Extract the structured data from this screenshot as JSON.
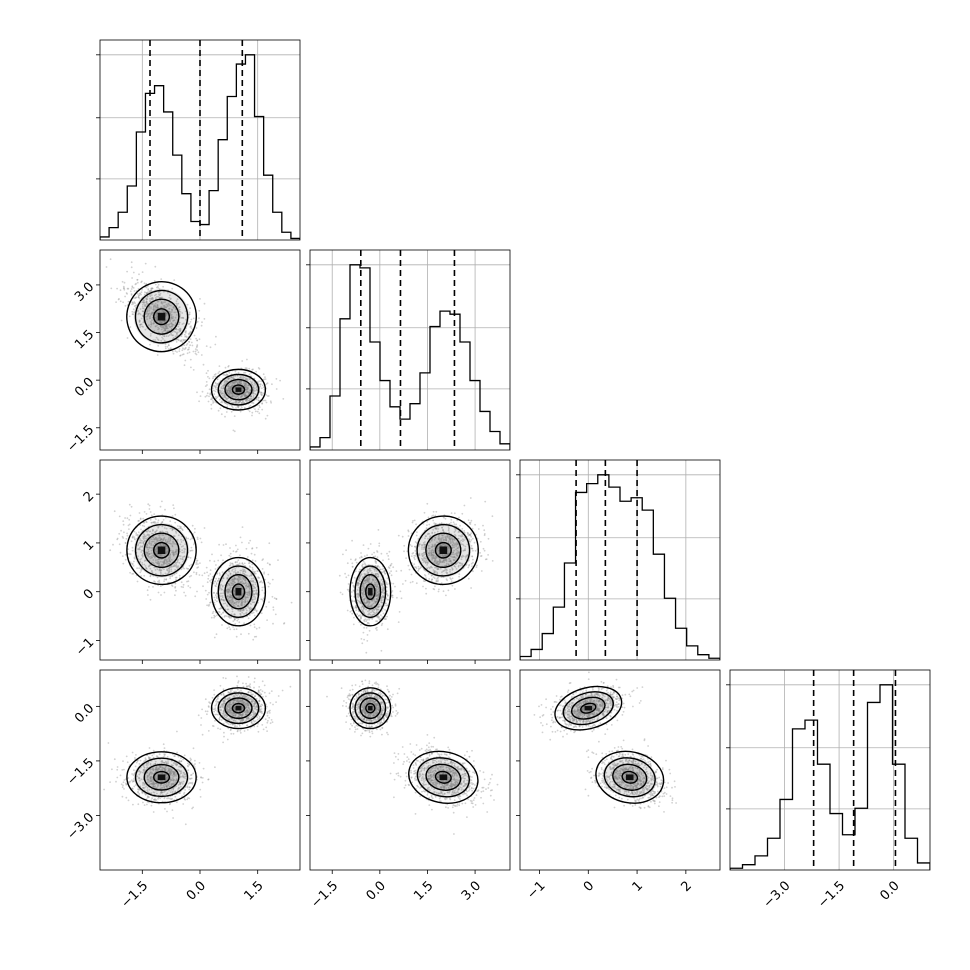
{
  "chart_data": {
    "type": "corner",
    "parameters": 4,
    "grid": true,
    "ranges": [
      [
        -2.6,
        2.6
      ],
      [
        -2.2,
        4.1
      ],
      [
        -1.4,
        2.7
      ],
      [
        -4.5,
        1.0
      ]
    ],
    "ticks": [
      {
        "values": [
          -1.5,
          0.0,
          1.5
        ],
        "labels": [
          "−1.5",
          "0.0",
          "1.5"
        ]
      },
      {
        "values": [
          -1.5,
          0.0,
          1.5,
          3.0
        ],
        "labels": [
          "−1.5",
          "0.0",
          "1.5",
          "3.0"
        ]
      },
      {
        "values": [
          -1,
          0,
          1,
          2
        ],
        "labels": [
          "−1",
          "0",
          "1",
          "2"
        ]
      },
      {
        "values": [
          -3.0,
          -1.5,
          0.0
        ],
        "labels": [
          "−3.0",
          "−1.5",
          "0.0"
        ]
      }
    ],
    "quantiles": [
      [
        -1.3,
        0.0,
        1.1
      ],
      [
        -0.6,
        0.65,
        2.35
      ],
      [
        -0.25,
        0.35,
        1.0
      ],
      [
        -2.2,
        -1.1,
        0.05
      ]
    ],
    "modes": [
      {
        "weight": 0.5,
        "mean": [
          -1.0,
          2.0,
          0.85,
          -1.95
        ],
        "sd": [
          0.45,
          0.55,
          0.35,
          0.35
        ]
      },
      {
        "weight": 0.5,
        "mean": [
          1.0,
          -0.3,
          0.0,
          -0.05
        ],
        "sd": [
          0.35,
          0.32,
          0.35,
          0.28
        ]
      }
    ],
    "correlations": {
      "0-1": [
        -0.6,
        0.0
      ],
      "0-2": [
        -0.2,
        0.0
      ],
      "0-3": [
        0.0,
        0.0
      ],
      "1-2": [
        0.2,
        0.0
      ],
      "1-3": [
        -0.3,
        0.0
      ],
      "2-3": [
        -0.3,
        0.4
      ]
    },
    "histograms": [
      {
        "edges_range": [
          -2.6,
          2.6
        ],
        "counts": [
          0.02,
          0.08,
          0.18,
          0.35,
          0.7,
          0.95,
          1.0,
          0.83,
          0.55,
          0.3,
          0.12,
          0.1,
          0.32,
          0.65,
          0.93,
          1.14,
          1.2,
          0.8,
          0.42,
          0.18,
          0.05,
          0.01
        ]
      },
      {
        "edges_range": [
          -2.2,
          4.1
        ],
        "counts": [
          0.02,
          0.08,
          0.35,
          0.85,
          1.2,
          1.18,
          0.7,
          0.45,
          0.28,
          0.2,
          0.3,
          0.5,
          0.8,
          0.9,
          0.88,
          0.7,
          0.45,
          0.25,
          0.12,
          0.04
        ]
      },
      {
        "edges_range": [
          -1.4,
          2.7
        ],
        "counts": [
          0.02,
          0.06,
          0.15,
          0.3,
          0.55,
          0.95,
          1.0,
          1.05,
          0.98,
          0.9,
          0.92,
          0.85,
          0.6,
          0.35,
          0.18,
          0.08,
          0.03,
          0.01
        ]
      },
      {
        "edges_range": [
          -4.5,
          1.0
        ],
        "counts": [
          0.01,
          0.03,
          0.08,
          0.18,
          0.4,
          0.8,
          0.85,
          0.6,
          0.32,
          0.2,
          0.35,
          0.95,
          1.05,
          0.6,
          0.18,
          0.04
        ]
      }
    ]
  }
}
